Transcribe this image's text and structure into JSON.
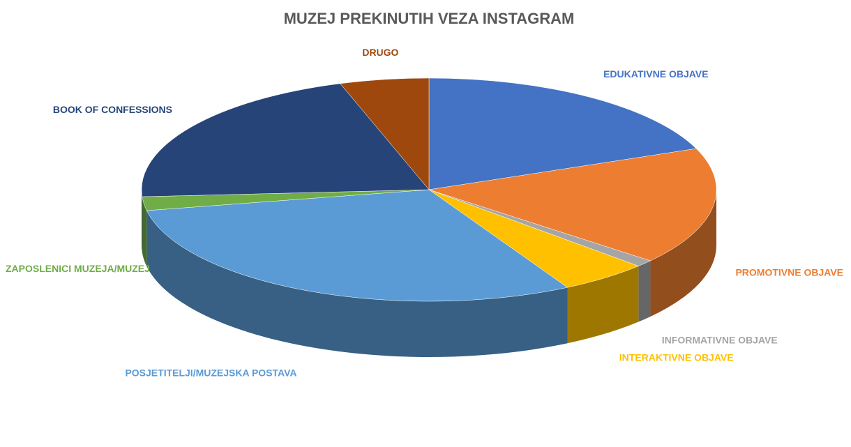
{
  "chart_data": {
    "type": "pie3d",
    "title": "MUZEJ PREKINUTIH VEZA INSTAGRAM",
    "categories": [
      "EDUKATIVNE OBJAVE",
      "PROMOTIVNE OBJAVE",
      "INFORMATIVNE OBJAVE",
      "INTERAKTIVNE OBJAVE",
      "POSJETITELJI/MUZEJSKA POSTAVA",
      "ZAPOSLENICI MUZEJA/MUZEJ",
      "BOOK OF CONFESSIONS",
      "DRUGO"
    ],
    "values": [
      19,
      17,
      1,
      5,
      30,
      2,
      21,
      5
    ],
    "colors": [
      "#4472c4",
      "#ed7d31",
      "#a5a5a5",
      "#ffc000",
      "#5b9bd5",
      "#70ad47",
      "#264478",
      "#9e480e"
    ]
  }
}
